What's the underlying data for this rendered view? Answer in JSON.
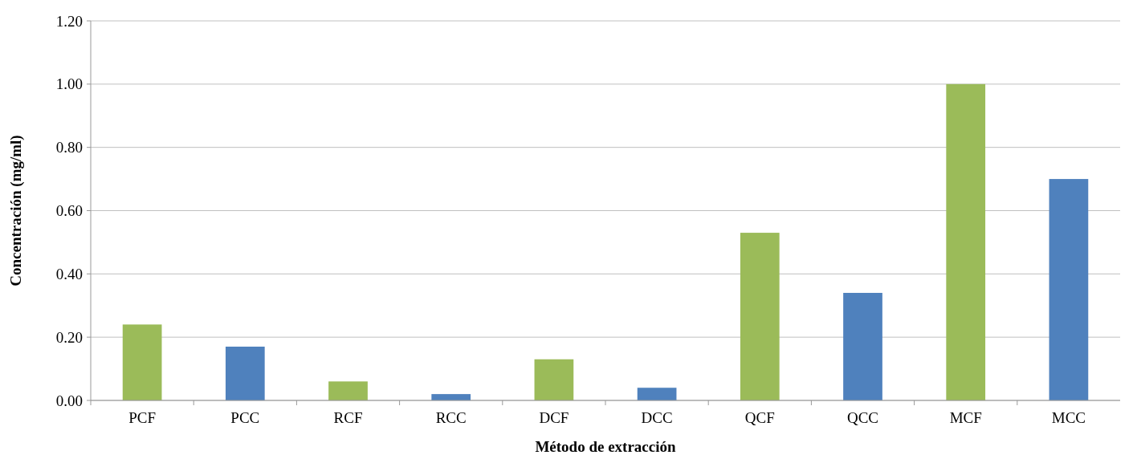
{
  "chart_data": {
    "type": "bar",
    "xlabel": "Método de extracción",
    "ylabel": "Concentración (mg/ml)",
    "categories": [
      "PCF",
      "PCC",
      "RCF",
      "RCC",
      "DCF",
      "DCC",
      "QCF",
      "QCC",
      "MCF",
      "MCC"
    ],
    "values": [
      0.24,
      0.17,
      0.06,
      0.02,
      0.13,
      0.04,
      0.53,
      0.34,
      1.0,
      0.7
    ],
    "colors": [
      "#9bbb59",
      "#4f81bd",
      "#9bbb59",
      "#4f81bd",
      "#9bbb59",
      "#4f81bd",
      "#9bbb59",
      "#4f81bd",
      "#9bbb59",
      "#4f81bd"
    ],
    "ylim": [
      0,
      1.2
    ],
    "yticks": [
      {
        "value": 0,
        "label": "0.00"
      },
      {
        "value": 0.2,
        "label": "0.20"
      },
      {
        "value": 0.4,
        "label": "0.40"
      },
      {
        "value": 0.6,
        "label": "0.60"
      },
      {
        "value": 0.8,
        "label": "0.80"
      },
      {
        "value": 1,
        "label": "1.00"
      },
      {
        "value": 1.2,
        "label": "1.20"
      }
    ],
    "grid": "y"
  }
}
